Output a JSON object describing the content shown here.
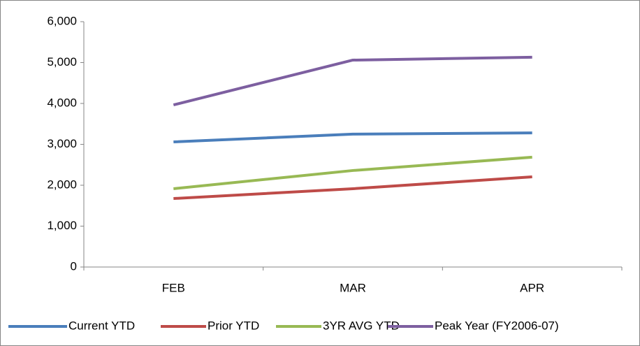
{
  "chart_data": {
    "type": "line",
    "categories": [
      "FEB",
      "MAR",
      "APR"
    ],
    "series": [
      {
        "name": "Current YTD",
        "color": "#4a7ebb",
        "values": [
          3060,
          3250,
          3280
        ]
      },
      {
        "name": "Prior YTD",
        "color": "#be4b48",
        "values": [
          1675,
          1915,
          2205
        ]
      },
      {
        "name": "3YR AVG YTD",
        "color": "#98b954",
        "values": [
          1915,
          2360,
          2685
        ]
      },
      {
        "name": "Peak Year (FY2006-07)",
        "color": "#7d5fa0",
        "values": [
          3965,
          5060,
          5130
        ]
      }
    ],
    "ylim": [
      0,
      6000
    ],
    "yticks": [
      0,
      {
        "value": 1000,
        "label": "1,000"
      },
      {
        "value": 2000,
        "label": "2,000"
      },
      {
        "value": 3000,
        "label": "3,000"
      },
      {
        "value": 4000,
        "label": "4,000"
      },
      {
        "value": 5000,
        "label": "5,000"
      },
      {
        "value": 6000,
        "label": "6,000"
      }
    ],
    "grid": false,
    "legend": "bottom"
  }
}
